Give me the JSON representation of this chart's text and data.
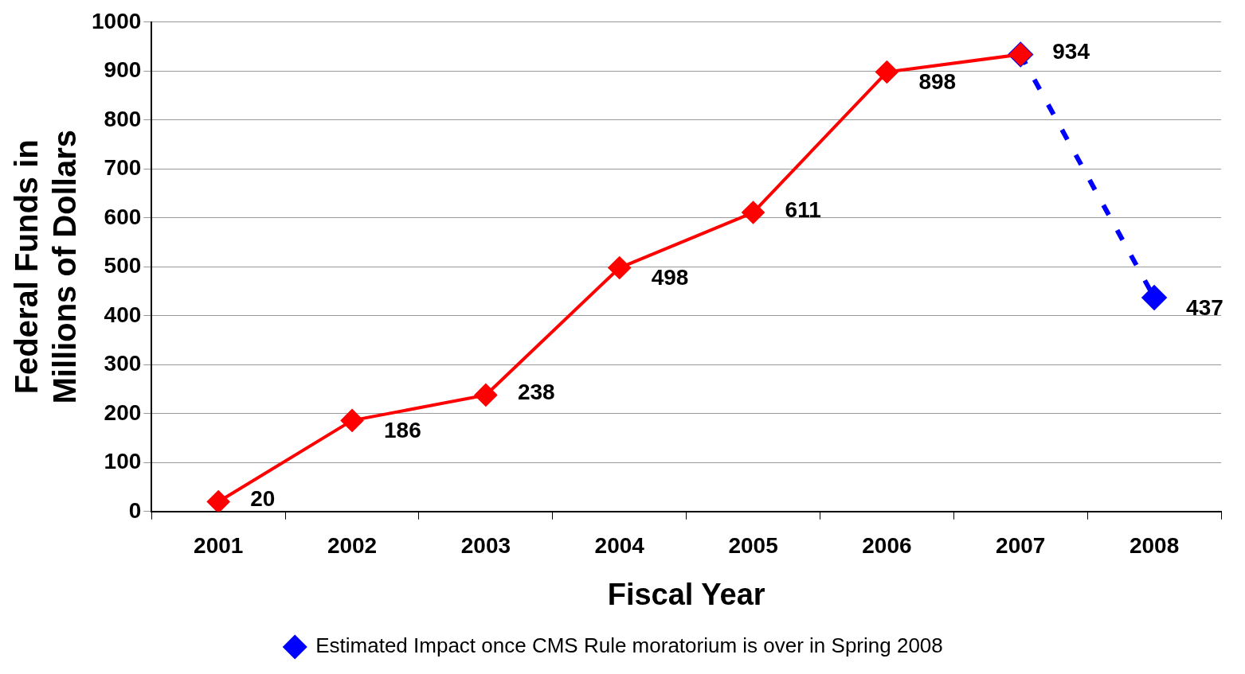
{
  "chart_data": {
    "type": "line",
    "xlabel": "Fiscal Year",
    "ylabel": "Federal Funds in Millions of Dollars",
    "categories": [
      "2001",
      "2002",
      "2003",
      "2004",
      "2005",
      "2006",
      "2007",
      "2008"
    ],
    "series": [
      {
        "color": "#ff0000",
        "values": [
          20,
          186,
          238,
          498,
          611,
          898,
          934,
          null
        ],
        "value_labels": [
          "20",
          "186",
          "238",
          "498",
          "611",
          "898",
          null,
          null
        ],
        "line_style": "solid"
      },
      {
        "name": "Estimated Impact once CMS Rule moratorium is over in Spring 2008",
        "color": "#0000ff",
        "values": [
          null,
          null,
          null,
          null,
          null,
          null,
          934,
          437
        ],
        "value_labels": [
          null,
          null,
          null,
          null,
          null,
          null,
          "934",
          "437"
        ],
        "line_style": "dashed"
      }
    ],
    "ylim": [
      0,
      1000
    ],
    "yticks": [
      0,
      100,
      200,
      300,
      400,
      500,
      600,
      700,
      800,
      900,
      1000
    ],
    "grid": "y",
    "legend": "bottom",
    "marker": "diamond"
  }
}
